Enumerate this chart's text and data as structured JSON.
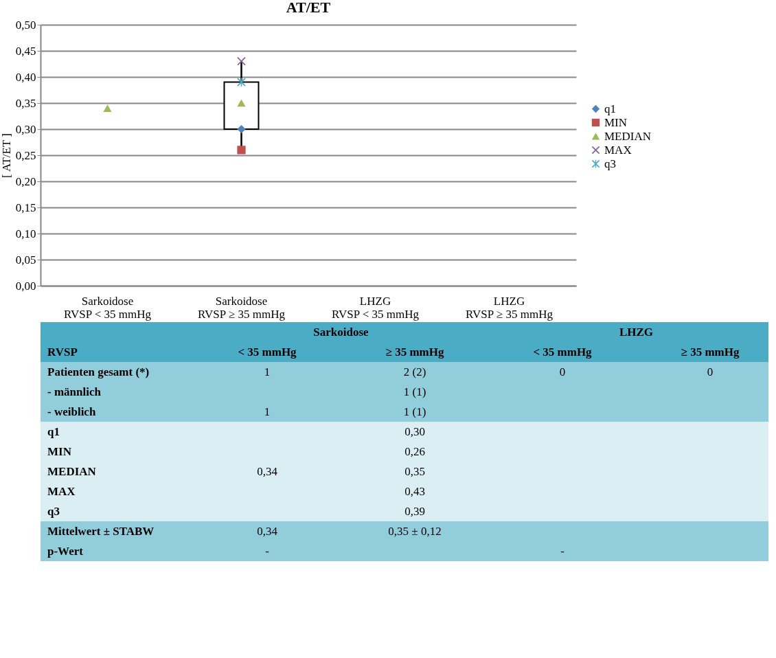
{
  "chart_data": [
    {
      "type": "scatter",
      "title": "AT/ET",
      "ylabel": "[ AT/ET ]",
      "categories": [
        "Sarkoidose\nRVSP < 35 mmHg",
        "Sarkoidose\nRVSP ≥ 35 mmHg",
        "LHZG\nRVSP < 35 mmHg",
        "LHZG\nRVSP ≥ 35 mmHg"
      ],
      "series": [
        {
          "name": "q1",
          "color": "#4f81bd",
          "marker": "diamond",
          "values": [
            null,
            0.3,
            null,
            null
          ]
        },
        {
          "name": "MIN",
          "color": "#c0504d",
          "marker": "square",
          "values": [
            null,
            0.26,
            null,
            null
          ]
        },
        {
          "name": "MEDIAN",
          "color": "#9bbb59",
          "marker": "triangle",
          "values": [
            0.34,
            0.35,
            null,
            null
          ]
        },
        {
          "name": "MAX",
          "color": "#8064a2",
          "marker": "cross",
          "values": [
            null,
            0.43,
            null,
            null
          ]
        },
        {
          "name": "q3",
          "color": "#4bacc6",
          "marker": "star",
          "values": [
            null,
            0.39,
            null,
            null
          ]
        },
        {
          "type": "box",
          "color": "#ffffff",
          "boxes": [
            null,
            {
              "low": 0.26,
              "q1": 0.3,
              "q3": 0.39,
              "high": 0.43
            },
            null,
            null
          ]
        }
      ],
      "ylim": [
        0,
        0.5
      ],
      "yticks": [
        {
          "value": 0,
          "label": "0,00"
        },
        {
          "value": 0.05,
          "label": "0,05"
        },
        {
          "value": 0.1,
          "label": "0,10"
        },
        {
          "value": 0.15,
          "label": "0,15"
        },
        {
          "value": 0.2,
          "label": "0,20"
        },
        {
          "value": 0.25,
          "label": "0,25"
        },
        {
          "value": 0.3,
          "label": "0,30"
        },
        {
          "value": 0.35,
          "label": "0,35"
        },
        {
          "value": 0.4,
          "label": "0,40"
        },
        {
          "value": 0.45,
          "label": "0,45"
        },
        {
          "value": 0.5,
          "label": "0,50"
        }
      ],
      "grid": "y",
      "legend": "right"
    },
    {
      "type": "other",
      "annotations": [
        "Sarkoidose",
        "LHZG"
      ],
      "categories": [
        "RVSP",
        "< 35 mmHg",
        "≥ 35 mmHg",
        "< 35 mmHg",
        "≥ 35 mmHg"
      ],
      "y_categories": [
        "Patienten gesamt (*)",
        "- männlich",
        "- weiblich",
        "q1",
        "MIN",
        "MEDIAN",
        "MAX",
        "q3",
        "Mittelwert ± STABW",
        "p-Wert"
      ],
      "cell_labels": [
        [
          "1",
          "2 (2)",
          "0",
          "0"
        ],
        [
          null,
          "1 (1)",
          null,
          null
        ],
        [
          "1",
          "1 (1)",
          null,
          null
        ],
        [
          null,
          "0,30",
          null,
          null
        ],
        [
          null,
          "0,26",
          null,
          null
        ],
        [
          "0,34",
          "0,35",
          null,
          null
        ],
        [
          null,
          "0,43",
          null,
          null
        ],
        [
          null,
          "0,39",
          null,
          null
        ],
        [
          "0,34",
          "0,35 ± 0,12",
          null,
          null
        ],
        [
          "-",
          null,
          "-",
          null
        ]
      ],
      "colors": [
        "#4bacc6",
        "#4bacc6",
        "#92cddc",
        "#92cddc",
        "#92cddc",
        "#daeef3",
        "#daeef3",
        "#daeef3",
        "#daeef3",
        "#daeef3",
        "#92cddc",
        "#92cddc"
      ]
    }
  ]
}
